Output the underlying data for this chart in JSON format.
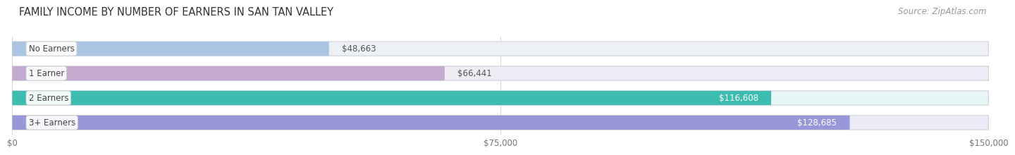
{
  "title": "FAMILY INCOME BY NUMBER OF EARNERS IN SAN TAN VALLEY",
  "source": "Source: ZipAtlas.com",
  "categories": [
    "No Earners",
    "1 Earner",
    "2 Earners",
    "3+ Earners"
  ],
  "values": [
    48663,
    66441,
    116608,
    128685
  ],
  "bar_colors": [
    "#aac4e2",
    "#c4aacf",
    "#3dbcb0",
    "#9898d8"
  ],
  "bar_bg_colors": [
    "#edf0f5",
    "#f0ecf5",
    "#e8f5f5",
    "#ebebf8"
  ],
  "value_label_inside": [
    false,
    false,
    true,
    true
  ],
  "value_labels": [
    "$48,663",
    "$66,441",
    "$116,608",
    "$128,685"
  ],
  "x_ticks": [
    0,
    75000,
    150000
  ],
  "x_tick_labels": [
    "$0",
    "$75,000",
    "$150,000"
  ],
  "xlim": [
    0,
    150000
  ],
  "title_fontsize": 10.5,
  "source_fontsize": 8.5,
  "cat_label_fontsize": 8.5,
  "value_fontsize": 8.5,
  "tick_fontsize": 8.5,
  "background_color": "#ffffff",
  "bar_height": 0.58,
  "bar_gap": 0.42
}
